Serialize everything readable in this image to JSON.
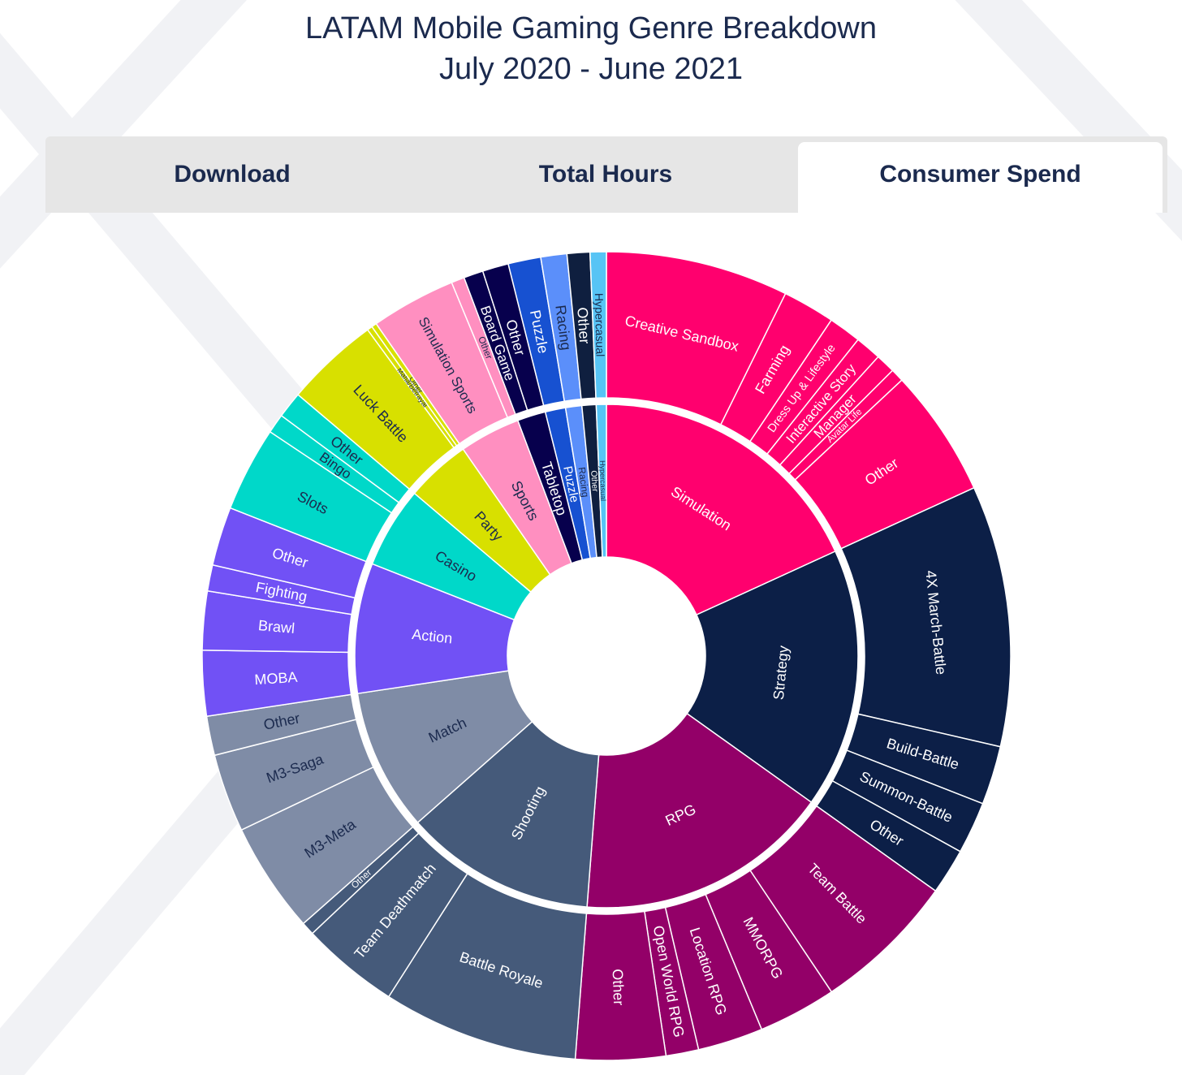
{
  "title": {
    "line1": "LATAM Mobile Gaming Genre Breakdown",
    "line2": "July 2020 - June 2021"
  },
  "tabs": [
    {
      "label": "Download",
      "selected": false
    },
    {
      "label": "Total Hours",
      "selected": false
    },
    {
      "label": "Consumer Spend",
      "selected": true
    }
  ],
  "chart_data": {
    "type": "sunburst",
    "genres": [
      {
        "name": "Simulation",
        "value": 0.1935,
        "color": "#ff006e",
        "text_color": "#ffffff",
        "subgenres": [
          {
            "name": "Creative Sandbox",
            "value": 0.0778
          },
          {
            "name": "Farming",
            "value": 0.0222
          },
          {
            "name": "Dress Up & Lifestyle",
            "value": 0.0139
          },
          {
            "name": "Interactive Story",
            "value": 0.0111
          },
          {
            "name": "Manager",
            "value": 0.0083
          },
          {
            "name": "Avatar Life",
            "value": 0.0056
          },
          {
            "name": "Other",
            "value": 0.0546
          }
        ]
      },
      {
        "name": "Strategy",
        "value": 0.1778,
        "color": "#0c1f47",
        "text_color": "#ffffff",
        "subgenres": [
          {
            "name": "4X March-Battle",
            "value": 0.1111
          },
          {
            "name": "Build-Battle",
            "value": 0.025
          },
          {
            "name": "Summon-Battle",
            "value": 0.0222
          },
          {
            "name": "Other",
            "value": 0.0195
          }
        ]
      },
      {
        "name": "RPG",
        "value": 0.1743,
        "color": "#930068",
        "text_color": "#ffffff",
        "subgenres": [
          {
            "name": "Team Battle",
            "value": 0.0611
          },
          {
            "name": "MMORPG",
            "value": 0.0333
          },
          {
            "name": "Location RPG",
            "value": 0.0278
          },
          {
            "name": "Open World RPG",
            "value": 0.0139
          },
          {
            "name": "Other",
            "value": 0.0382
          }
        ]
      },
      {
        "name": "Shooting",
        "value": 0.1306,
        "color": "#455a7a",
        "text_color": "#ffffff",
        "subgenres": [
          {
            "name": "Battle Royale",
            "value": 0.0833
          },
          {
            "name": "Team Deathmatch",
            "value": 0.0417
          },
          {
            "name": "Other",
            "value": 0.0056
          }
        ]
      },
      {
        "name": "Match",
        "value": 0.0972,
        "color": "#7f8ca6",
        "text_color": "#1b2a4e",
        "subgenres": [
          {
            "name": "M3-Meta",
            "value": 0.0472
          },
          {
            "name": "M3-Saga",
            "value": 0.0333
          },
          {
            "name": "Other",
            "value": 0.0167
          }
        ]
      },
      {
        "name": "Action",
        "value": 0.0889,
        "color": "#7151f5",
        "text_color": "#ffffff",
        "subgenres": [
          {
            "name": "MOBA",
            "value": 0.0278
          },
          {
            "name": "Brawl",
            "value": 0.025
          },
          {
            "name": "Fighting",
            "value": 0.0111
          },
          {
            "name": "Other",
            "value": 0.025
          }
        ]
      },
      {
        "name": "Casino",
        "value": 0.0556,
        "color": "#00d8c9",
        "text_color": "#1b2a4e",
        "subgenres": [
          {
            "name": "Slots",
            "value": 0.0361
          },
          {
            "name": "Bingo",
            "value": 0.0083
          },
          {
            "name": "Other",
            "value": 0.0112
          }
        ]
      },
      {
        "name": "Party",
        "value": 0.0444,
        "color": "#d8e000",
        "text_color": "#1b2a4e",
        "subgenres": [
          {
            "name": "Luck Battle",
            "value": 0.04
          },
          {
            "name": "Mafia/Betrayal",
            "value": 0.0022
          },
          {
            "name": "Other",
            "value": 0.0022
          }
        ]
      },
      {
        "name": "Sports",
        "value": 0.0417,
        "color": "#ff8fc0",
        "text_color": "#1b2a4e",
        "subgenres": [
          {
            "name": "Simulation Sports",
            "value": 0.0361
          },
          {
            "name": "Other",
            "value": 0.0056
          }
        ]
      },
      {
        "name": "Tabletop",
        "value": 0.0194,
        "color": "#07004d",
        "text_color": "#ffffff",
        "subgenres": [
          {
            "name": "Board Game",
            "value": 0.0083
          },
          {
            "name": "Other",
            "value": 0.0111
          }
        ]
      },
      {
        "name": "Puzzle",
        "value": 0.0139,
        "color": "#1751d1",
        "text_color": "#ffffff",
        "subgenres": [
          {
            "name": "Puzzle",
            "value": 0.0139
          }
        ]
      },
      {
        "name": "Racing",
        "value": 0.0111,
        "color": "#5b8ffa",
        "text_color": "#1b2a4e",
        "subgenres": [
          {
            "name": "Racing",
            "value": 0.0111
          }
        ]
      },
      {
        "name": "Other",
        "value": 0.0097,
        "color": "#0f1f3f",
        "text_color": "#ffffff",
        "subgenres": [
          {
            "name": "Other",
            "value": 0.0097
          }
        ]
      },
      {
        "name": "Hypercasual",
        "value": 0.0069,
        "color": "#57c4f5",
        "text_color": "#1b2a4e",
        "subgenres": [
          {
            "name": "Hypercasual",
            "value": 0.0069
          }
        ]
      }
    ]
  }
}
